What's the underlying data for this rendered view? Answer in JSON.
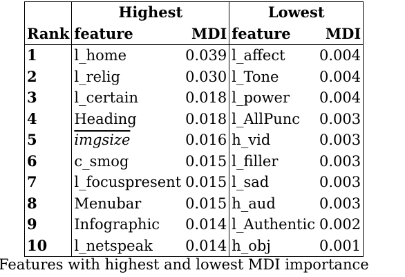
{
  "table": {
    "group_highest": "Highest",
    "group_lowest": "Lowest",
    "col_rank": "Rank",
    "col_feature_hi": "feature",
    "col_mdi_hi": "MDI",
    "col_feature_lo": "feature",
    "col_mdi_lo": "MDI",
    "rows": [
      {
        "rank": "1",
        "hi_feature": "l_home",
        "hi_mdi": "0.039",
        "lo_feature": "l_affect",
        "lo_mdi": "0.004"
      },
      {
        "rank": "2",
        "hi_feature": "l_relig",
        "hi_mdi": "0.030",
        "lo_feature": "l_Tone",
        "lo_mdi": "0.004"
      },
      {
        "rank": "3",
        "hi_feature": "l_certain",
        "hi_mdi": "0.018",
        "lo_feature": "l_power",
        "lo_mdi": "0.004"
      },
      {
        "rank": "4",
        "hi_feature": "Heading",
        "hi_mdi": "0.018",
        "lo_feature": "l_AllPunc",
        "lo_mdi": "0.003"
      },
      {
        "rank": "5",
        "hi_feature": "imgsize",
        "hi_mdi": "0.016",
        "lo_feature": "h_vid",
        "lo_mdi": "0.003"
      },
      {
        "rank": "6",
        "hi_feature": "c_smog",
        "hi_mdi": "0.015",
        "lo_feature": "l_filler",
        "lo_mdi": "0.003"
      },
      {
        "rank": "7",
        "hi_feature": "l_focuspresent",
        "hi_mdi": "0.015",
        "lo_feature": "l_sad",
        "lo_mdi": "0.003"
      },
      {
        "rank": "8",
        "hi_feature": "Menubar",
        "hi_mdi": "0.015",
        "lo_feature": "h_aud",
        "lo_mdi": "0.003"
      },
      {
        "rank": "9",
        "hi_feature": "Infographic",
        "hi_mdi": "0.014",
        "lo_feature": "l_Authentic",
        "lo_mdi": "0.002"
      },
      {
        "rank": "10",
        "hi_feature": "l_netspeak",
        "hi_mdi": "0.014",
        "lo_feature": "h_obj",
        "lo_mdi": "0.001"
      }
    ]
  },
  "caption": "Features with highest and lowest MDI importance"
}
